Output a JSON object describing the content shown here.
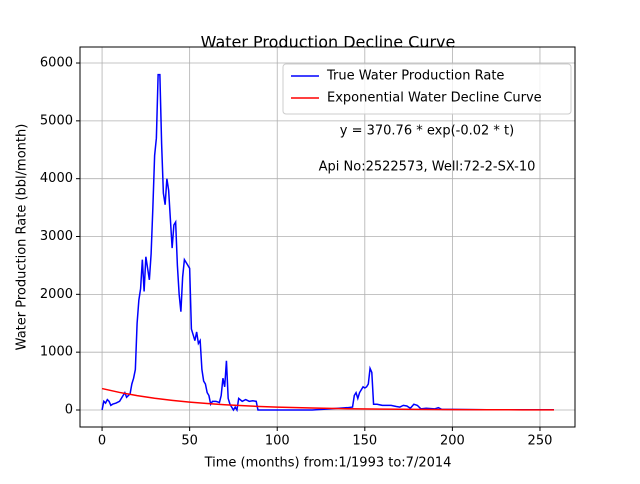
{
  "chart_data": {
    "type": "line",
    "title": "Water Production Decline Curve",
    "xlabel": "Time (months) from:1/1993 to:7/2014",
    "ylabel": "Water Production Rate (bbl/month)",
    "annotations": [
      "y = 370.76 * exp(-0.02 * t)",
      "Api No:2522573, Well:72-2-SX-10"
    ],
    "xlim": [
      -12.6,
      270
    ],
    "ylim": [
      -294,
      6277
    ],
    "xticks": [
      0,
      50,
      100,
      150,
      200,
      250
    ],
    "yticks": [
      0,
      1000,
      2000,
      3000,
      4000,
      5000,
      6000
    ],
    "grid": true,
    "legend": "upper right",
    "series": [
      {
        "name": "True Water Production Rate",
        "color": "#0000ff",
        "x": [
          0,
          1,
          2,
          3,
          4,
          5,
          6,
          8,
          10,
          12,
          13,
          14,
          15,
          16,
          17,
          18,
          19,
          20,
          21,
          22,
          23,
          24,
          25,
          26,
          27,
          28,
          29,
          30,
          31,
          32,
          33,
          34,
          35,
          36,
          37,
          38,
          39,
          40,
          41,
          42,
          43,
          44,
          45,
          46,
          47,
          48,
          49,
          50,
          51,
          52,
          53,
          54,
          55,
          56,
          57,
          58,
          59,
          60,
          61,
          62,
          63,
          65,
          67,
          68,
          69,
          70,
          71,
          72,
          73,
          74,
          75,
          76,
          77,
          78,
          80,
          82,
          84,
          86,
          88,
          89,
          95,
          110,
          120,
          130,
          135,
          140,
          143,
          144,
          145,
          146,
          147,
          148,
          149,
          150,
          151,
          152,
          153,
          154,
          155,
          157,
          160,
          165,
          168,
          170,
          172,
          174,
          176,
          178,
          180,
          182,
          185,
          190,
          192,
          194,
          200,
          220,
          240,
          258
        ],
        "values": [
          0,
          150,
          120,
          180,
          150,
          80,
          100,
          120,
          150,
          250,
          300,
          220,
          250,
          280,
          450,
          550,
          700,
          1500,
          1900,
          2100,
          2600,
          2050,
          2650,
          2450,
          2250,
          2700,
          3500,
          4400,
          4700,
          5800,
          5800,
          4600,
          3750,
          3550,
          4000,
          3800,
          3300,
          2800,
          3200,
          3250,
          2500,
          2000,
          1700,
          2300,
          2600,
          2550,
          2500,
          2450,
          1400,
          1300,
          1200,
          1350,
          1150,
          1200,
          700,
          500,
          450,
          300,
          250,
          100,
          150,
          150,
          130,
          250,
          550,
          400,
          850,
          200,
          100,
          50,
          0,
          50,
          0,
          200,
          150,
          180,
          150,
          160,
          150,
          0,
          0,
          0,
          0,
          20,
          30,
          40,
          50,
          250,
          300,
          200,
          300,
          350,
          400,
          380,
          400,
          450,
          720,
          650,
          100,
          100,
          80,
          80,
          60,
          50,
          80,
          70,
          30,
          100,
          80,
          20,
          30,
          20,
          40,
          10,
          10,
          5,
          5,
          5
        ]
      },
      {
        "name": "Exponential Water Decline Curve",
        "color": "#ff0000",
        "x": [
          0,
          10,
          20,
          30,
          40,
          50,
          60,
          70,
          80,
          90,
          100,
          120,
          140,
          160,
          180,
          200,
          220,
          240,
          258
        ],
        "values": [
          370.76,
          303.55,
          248.53,
          203.48,
          166.59,
          136.39,
          111.67,
          91.42,
          74.85,
          61.28,
          50.18,
          33.63,
          22.55,
          15.11,
          10.13,
          6.79,
          4.55,
          3.05,
          2.12
        ]
      }
    ]
  }
}
